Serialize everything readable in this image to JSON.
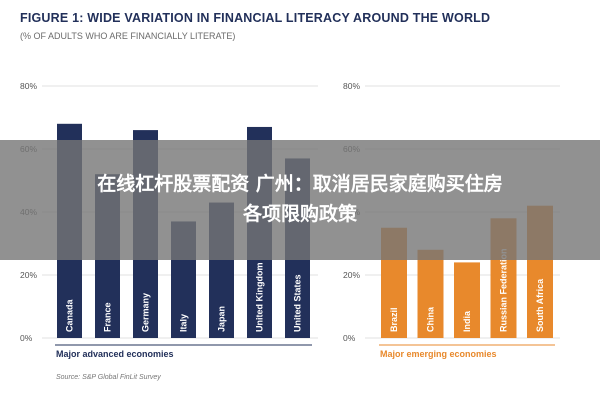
{
  "chart_data": {
    "type": "bar",
    "title": "FIGURE 1: WIDE VARIATION IN FINANCIAL LITERACY AROUND THE WORLD",
    "subtitle": "(% OF ADULTS WHO ARE FINANCIALLY LITERATE)",
    "ylim": [
      0,
      80
    ],
    "yticks": [
      "80%",
      "60%",
      "40%",
      "20%",
      "0%"
    ],
    "grid": true,
    "panels": [
      {
        "group_label": "Major advanced economies",
        "color": "#22305a",
        "categories": [
          "Canada",
          "France",
          "Germany",
          "Italy",
          "Japan",
          "United Kingdom",
          "United States"
        ],
        "values": [
          68,
          52,
          66,
          37,
          43,
          67,
          57
        ]
      },
      {
        "group_label": "Major emerging economies",
        "color": "#e8892c",
        "categories": [
          "Brazil",
          "China",
          "India",
          "Russian Federation",
          "South Africa"
        ],
        "values": [
          35,
          28,
          24,
          38,
          42
        ]
      }
    ],
    "source": "Source: S&P Global FinLit Survey"
  },
  "overlay": {
    "line1": "在线杠杆股票配资 广州：取消居民家庭购买住房",
    "line2": "各项限购政策"
  }
}
